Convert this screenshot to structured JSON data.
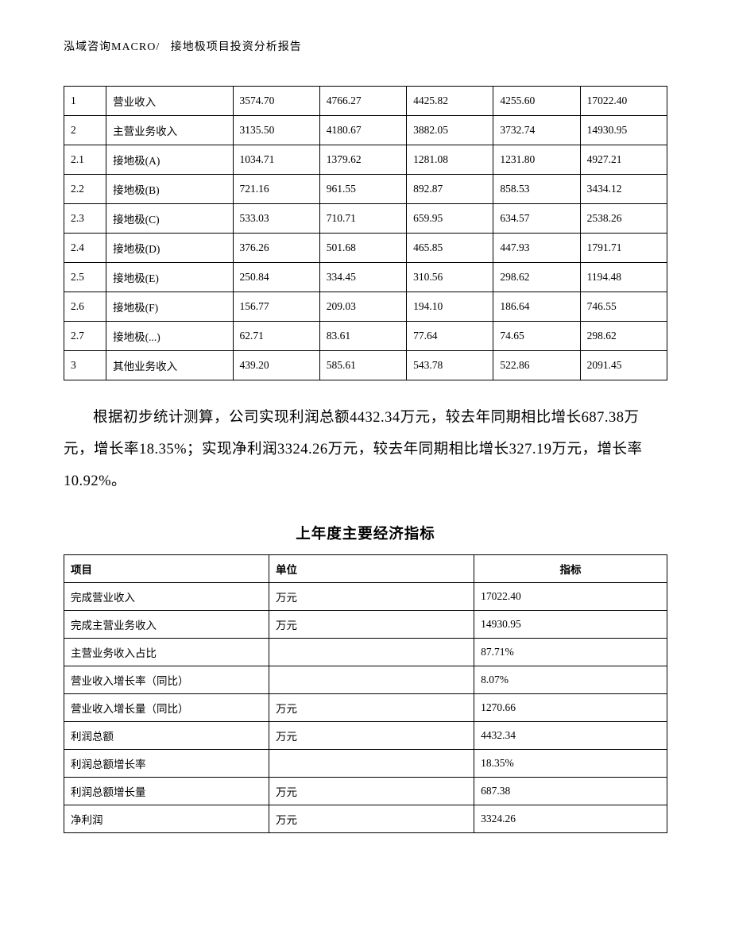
{
  "header": {
    "left": "泓域咨询MACRO/",
    "right": "接地极项目投资分析报告"
  },
  "table1": {
    "rows": [
      {
        "idx": "1",
        "name": "营业收入",
        "v1": "3574.70",
        "v2": "4766.27",
        "v3": "4425.82",
        "v4": "4255.60",
        "v5": "17022.40"
      },
      {
        "idx": "2",
        "name": "主营业务收入",
        "v1": "3135.50",
        "v2": "4180.67",
        "v3": "3882.05",
        "v4": "3732.74",
        "v5": "14930.95"
      },
      {
        "idx": "2.1",
        "name": "接地极(A)",
        "v1": "1034.71",
        "v2": "1379.62",
        "v3": "1281.08",
        "v4": "1231.80",
        "v5": "4927.21"
      },
      {
        "idx": "2.2",
        "name": "接地极(B)",
        "v1": "721.16",
        "v2": "961.55",
        "v3": "892.87",
        "v4": "858.53",
        "v5": "3434.12"
      },
      {
        "idx": "2.3",
        "name": "接地极(C)",
        "v1": "533.03",
        "v2": "710.71",
        "v3": "659.95",
        "v4": "634.57",
        "v5": "2538.26"
      },
      {
        "idx": "2.4",
        "name": "接地极(D)",
        "v1": "376.26",
        "v2": "501.68",
        "v3": "465.85",
        "v4": "447.93",
        "v5": "1791.71"
      },
      {
        "idx": "2.5",
        "name": "接地极(E)",
        "v1": "250.84",
        "v2": "334.45",
        "v3": "310.56",
        "v4": "298.62",
        "v5": "1194.48"
      },
      {
        "idx": "2.6",
        "name": "接地极(F)",
        "v1": "156.77",
        "v2": "209.03",
        "v3": "194.10",
        "v4": "186.64",
        "v5": "746.55"
      },
      {
        "idx": "2.7",
        "name": "接地极(...)",
        "v1": "62.71",
        "v2": "83.61",
        "v3": "77.64",
        "v4": "74.65",
        "v5": "298.62"
      },
      {
        "idx": "3",
        "name": "其他业务收入",
        "v1": "439.20",
        "v2": "585.61",
        "v3": "543.78",
        "v4": "522.86",
        "v5": "2091.45"
      }
    ]
  },
  "paragraph": "根据初步统计测算，公司实现利润总额4432.34万元，较去年同期相比增长687.38万元，增长率18.35%；实现净利润3324.26万元，较去年同期相比增长327.19万元，增长率10.92%。",
  "table2": {
    "title": "上年度主要经济指标",
    "headers": {
      "c1": "项目",
      "c2": "单位",
      "c3": "指标"
    },
    "rows": [
      {
        "c1": "完成营业收入",
        "c2": "万元",
        "c3": "17022.40"
      },
      {
        "c1": "完成主营业务收入",
        "c2": "万元",
        "c3": "14930.95"
      },
      {
        "c1": "主营业务收入占比",
        "c2": "",
        "c3": "87.71%"
      },
      {
        "c1": "营业收入增长率（同比）",
        "c2": "",
        "c3": "8.07%"
      },
      {
        "c1": "营业收入增长量（同比）",
        "c2": "万元",
        "c3": "1270.66"
      },
      {
        "c1": "利润总额",
        "c2": "万元",
        "c3": "4432.34"
      },
      {
        "c1": "利润总额增长率",
        "c2": "",
        "c3": "18.35%"
      },
      {
        "c1": "利润总额增长量",
        "c2": "万元",
        "c3": "687.38"
      },
      {
        "c1": "净利润",
        "c2": "万元",
        "c3": "3324.26"
      }
    ]
  }
}
